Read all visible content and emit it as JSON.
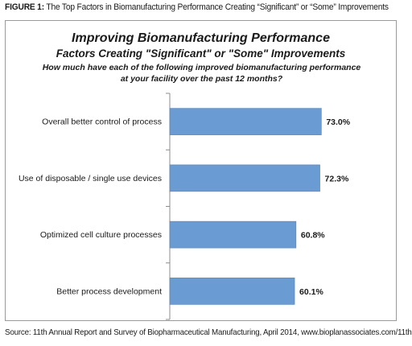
{
  "caption": {
    "label": "FIGURE 1:",
    "text": " The Top Factors in Biomanufacturing Performance Creating “Significant” or “Some” Improvements"
  },
  "source": "Source: 11th Annual Report and Survey of Biopharmaceutical Manufacturing, April 2014, www.bioplanassociates.com/11th",
  "chart_data": {
    "type": "bar",
    "orientation": "horizontal",
    "title": "Improving Biomanufacturing Performance",
    "subtitle": "Factors Creating \"Significant\" or \"Some\" Improvements",
    "question": "How much have each of the following improved biomanufacturing performance at your facility over the past 12 months?",
    "categories": [
      "Overall better control of process",
      "Use of disposable / single use devices",
      "Optimized cell culture processes",
      "Better process development"
    ],
    "values": [
      73.0,
      72.3,
      60.8,
      60.1
    ],
    "data_labels": [
      "73.0%",
      "72.3%",
      "60.8%",
      "60.1%"
    ],
    "xlim": [
      0,
      100
    ],
    "grid": false,
    "legend": "none",
    "colors": {
      "bar": "#6a9bd3",
      "bar_edge": "#4f81bd",
      "axis": "#8c8c8c"
    }
  }
}
